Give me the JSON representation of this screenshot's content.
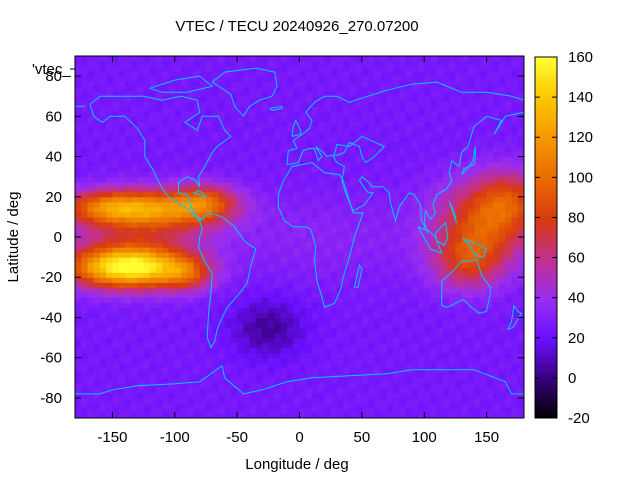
{
  "chart_data": {
    "type": "heatmap",
    "title": "VTEC / TECU 20240926_270.07200",
    "xlabel": "Longitude / deg",
    "ylabel": "Latitude / deg",
    "key_label": "'vtec_",
    "xlim": [
      -180,
      180
    ],
    "ylim": [
      -90,
      90
    ],
    "x_ticks": [
      -150,
      -100,
      -50,
      0,
      50,
      100,
      150
    ],
    "y_ticks": [
      -80,
      -60,
      -40,
      -20,
      0,
      20,
      40,
      60,
      80
    ],
    "colorbar": {
      "range": [
        -20,
        160
      ],
      "ticks": [
        -20,
        0,
        20,
        40,
        60,
        80,
        100,
        120,
        140,
        160
      ],
      "palette": "black-purple-red-orange-yellow"
    },
    "field": {
      "background_value": 25,
      "features": [
        {
          "name": "equatorial-crest-north-pacific",
          "lon": -150,
          "lat": 15,
          "value": 110
        },
        {
          "name": "equatorial-crest-south-pacific",
          "lon": -150,
          "lat": -15,
          "value": 120
        },
        {
          "name": "crest-south-america-north",
          "lon": -80,
          "lat": 15,
          "value": 85
        },
        {
          "name": "crest-south-america-south",
          "lon": -90,
          "lat": -15,
          "value": 80
        },
        {
          "name": "west-pacific-anomaly",
          "lon": 150,
          "lat": 5,
          "value": 90
        },
        {
          "name": "south-atlantic-low",
          "lon": -25,
          "lat": -45,
          "value": 5
        }
      ]
    },
    "grid": false
  }
}
